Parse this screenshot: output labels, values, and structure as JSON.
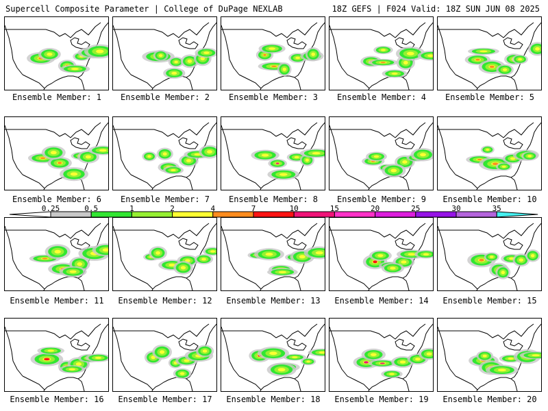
{
  "header": {
    "title_left": "Supercell Composite Parameter | College of DuPage NEXLAB",
    "title_right": "18Z GEFS | F024 Valid: 18Z SUN JUN 08 2025"
  },
  "members": [
    {
      "label": "Ensemble Member: 1",
      "max_level": "4"
    },
    {
      "label": "Ensemble Member: 2",
      "max_level": "2"
    },
    {
      "label": "Ensemble Member: 3",
      "max_level": "4"
    },
    {
      "label": "Ensemble Member: 4",
      "max_level": "4"
    },
    {
      "label": "Ensemble Member: 5",
      "max_level": "4"
    },
    {
      "label": "Ensemble Member: 6",
      "max_level": "4"
    },
    {
      "label": "Ensemble Member: 7",
      "max_level": "2"
    },
    {
      "label": "Ensemble Member: 8",
      "max_level": "10"
    },
    {
      "label": "Ensemble Member: 9",
      "max_level": "4"
    },
    {
      "label": "Ensemble Member: 10",
      "max_level": "4"
    },
    {
      "label": "Ensemble Member: 11",
      "max_level": "4"
    },
    {
      "label": "Ensemble Member: 12",
      "max_level": "2"
    },
    {
      "label": "Ensemble Member: 13",
      "max_level": "4"
    },
    {
      "label": "Ensemble Member: 14",
      "max_level": "7"
    },
    {
      "label": "Ensemble Member: 15",
      "max_level": "4"
    },
    {
      "label": "Ensemble Member: 16",
      "max_level": "7"
    },
    {
      "label": "Ensemble Member: 17",
      "max_level": "2"
    },
    {
      "label": "Ensemble Member: 18",
      "max_level": "7"
    },
    {
      "label": "Ensemble Member: 19",
      "max_level": "10"
    },
    {
      "label": "Ensemble Member: 20",
      "max_level": "4"
    }
  ],
  "colorbar": {
    "ticks": [
      "0.25",
      "0.5",
      "1",
      "2",
      "4",
      "7",
      "10",
      "15",
      "20",
      "25",
      "30",
      "35"
    ],
    "colors": [
      "#c8c8c8",
      "#32e632",
      "#96f032",
      "#ffff32",
      "#ff8c1e",
      "#ff1414",
      "#f01478",
      "#ff32c8",
      "#dc1edc",
      "#9614e6",
      "#b464dc",
      "#46f0f0"
    ]
  }
}
